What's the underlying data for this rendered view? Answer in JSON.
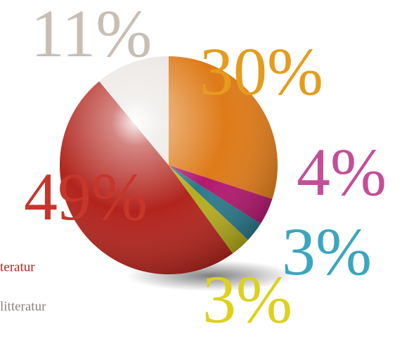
{
  "chart_data": {
    "type": "pie",
    "values": [
      30,
      4,
      3,
      3,
      49,
      11
    ],
    "value_labels": [
      "30%",
      "4%",
      "3%",
      "3%",
      "49%",
      "11%"
    ],
    "colors": [
      "#de7a18",
      "#b3186e",
      "#2b7a8c",
      "#b5ad1c",
      "#b2241d",
      "#e9e5e1"
    ],
    "label_colors": [
      "#e59c1e",
      "#c44e98",
      "#3aa6bf",
      "#ddd11e",
      "#c6362a",
      "#c8beb4"
    ],
    "legend": [
      "teratur",
      "litteratur"
    ],
    "legend_colors": [
      "#b2241d",
      "#8a847e"
    ]
  }
}
